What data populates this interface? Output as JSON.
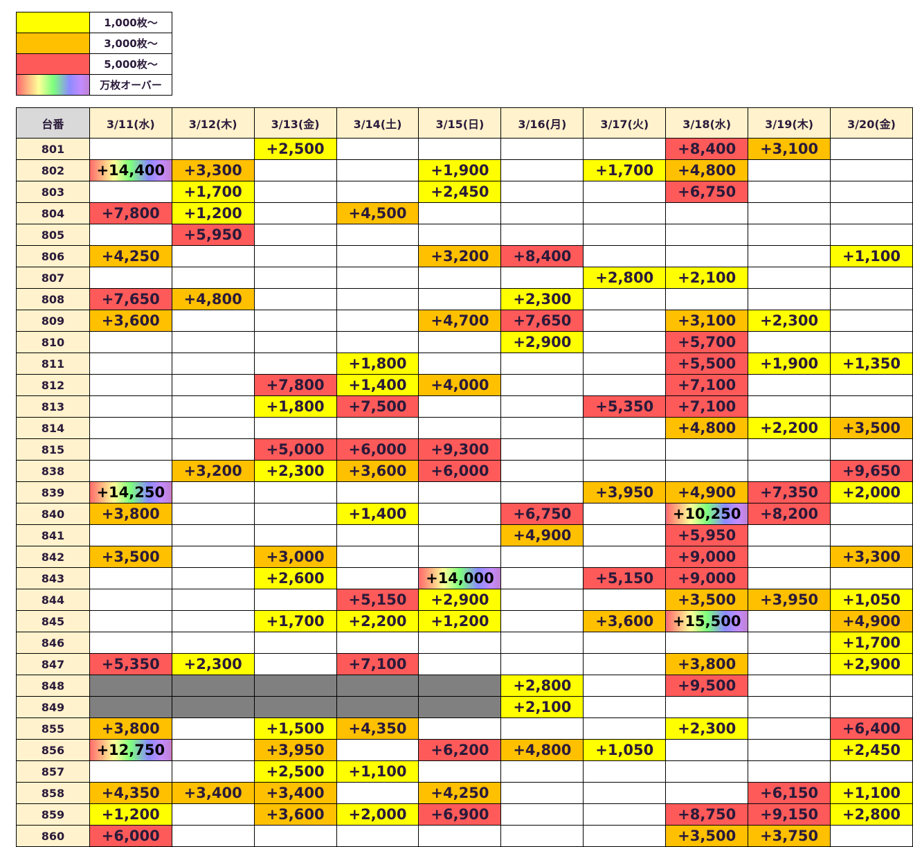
{
  "legend": [
    {
      "label": "1,000枚～",
      "color": "#ffff00"
    },
    {
      "label": "3,000枚～",
      "color": "#ffc000"
    },
    {
      "label": "5,000枚～",
      "color": "#ff5a5a"
    },
    {
      "label": "万枚オーバー",
      "color": "rainbow"
    }
  ],
  "header": {
    "id_label": "台番",
    "dates": [
      "3/11(水)",
      "3/12(木)",
      "3/13(金)",
      "3/14(土)",
      "3/15(日)",
      "3/16(月)",
      "3/17(火)",
      "3/18(水)",
      "3/19(木)",
      "3/20(金)"
    ]
  },
  "rows": [
    {
      "id": "801",
      "cells": [
        "",
        "",
        "+2,500",
        "",
        "",
        "",
        "",
        "+8,400",
        "+3,100",
        ""
      ]
    },
    {
      "id": "802",
      "cells": [
        "+14,400",
        "+3,300",
        "",
        "",
        "+1,900",
        "",
        "+1,700",
        "+4,800",
        "",
        ""
      ]
    },
    {
      "id": "803",
      "cells": [
        "",
        "+1,700",
        "",
        "",
        "+2,450",
        "",
        "",
        "+6,750",
        "",
        ""
      ]
    },
    {
      "id": "804",
      "cells": [
        "+7,800",
        "+1,200",
        "",
        "+4,500",
        "",
        "",
        "",
        "",
        "",
        ""
      ]
    },
    {
      "id": "805",
      "cells": [
        "",
        "+5,950",
        "",
        "",
        "",
        "",
        "",
        "",
        "",
        ""
      ]
    },
    {
      "id": "806",
      "cells": [
        "+4,250",
        "",
        "",
        "",
        "+3,200",
        "+8,400",
        "",
        "",
        "",
        "+1,100"
      ]
    },
    {
      "id": "807",
      "cells": [
        "",
        "",
        "",
        "",
        "",
        "",
        "+2,800",
        "+2,100",
        "",
        ""
      ]
    },
    {
      "id": "808",
      "cells": [
        "+7,650",
        "+4,800",
        "",
        "",
        "",
        "+2,300",
        "",
        "",
        "",
        ""
      ]
    },
    {
      "id": "809",
      "cells": [
        "+3,600",
        "",
        "",
        "",
        "+4,700",
        "+7,650",
        "",
        "+3,100",
        "+2,300",
        ""
      ]
    },
    {
      "id": "810",
      "cells": [
        "",
        "",
        "",
        "",
        "",
        "+2,900",
        "",
        "+5,700",
        "",
        ""
      ]
    },
    {
      "id": "811",
      "cells": [
        "",
        "",
        "",
        "+1,800",
        "",
        "",
        "",
        "+5,500",
        "+1,900",
        "+1,350"
      ]
    },
    {
      "id": "812",
      "cells": [
        "",
        "",
        "+7,800",
        "+1,400",
        "+4,000",
        "",
        "",
        "+7,100",
        "",
        ""
      ]
    },
    {
      "id": "813",
      "cells": [
        "",
        "",
        "+1,800",
        "+7,500",
        "",
        "",
        "+5,350",
        "+7,100",
        "",
        ""
      ]
    },
    {
      "id": "814",
      "cells": [
        "",
        "",
        "",
        "",
        "",
        "",
        "",
        "+4,800",
        "+2,200",
        "+3,500"
      ]
    },
    {
      "id": "815",
      "cells": [
        "",
        "",
        "+5,000",
        "+6,000",
        "+9,300",
        "",
        "",
        "",
        "",
        ""
      ]
    },
    {
      "id": "838",
      "cells": [
        "",
        "+3,200",
        "+2,300",
        "+3,600",
        "+6,000",
        "",
        "",
        "",
        "",
        "+9,650"
      ]
    },
    {
      "id": "839",
      "cells": [
        "+14,250",
        "",
        "",
        "",
        "",
        "",
        "+3,950",
        "+4,900",
        "+7,350",
        "+2,000"
      ]
    },
    {
      "id": "840",
      "cells": [
        "+3,800",
        "",
        "",
        "+1,400",
        "",
        "+6,750",
        "",
        "+10,250",
        "+8,200",
        ""
      ]
    },
    {
      "id": "841",
      "cells": [
        "",
        "",
        "",
        "",
        "",
        "+4,900",
        "",
        "+5,950",
        "",
        ""
      ]
    },
    {
      "id": "842",
      "cells": [
        "+3,500",
        "",
        "+3,000",
        "",
        "",
        "",
        "",
        "+9,000",
        "",
        "+3,300"
      ]
    },
    {
      "id": "843",
      "cells": [
        "",
        "",
        "+2,600",
        "",
        "+14,000",
        "",
        "+5,150",
        "+9,000",
        "",
        ""
      ]
    },
    {
      "id": "844",
      "cells": [
        "",
        "",
        "",
        "+5,150",
        "+2,900",
        "",
        "",
        "+3,500",
        "+3,950",
        "+1,050"
      ]
    },
    {
      "id": "845",
      "cells": [
        "",
        "",
        "+1,700",
        "+2,200",
        "+1,200",
        "",
        "+3,600",
        "+15,500",
        "",
        "+4,900"
      ]
    },
    {
      "id": "846",
      "cells": [
        "",
        "",
        "",
        "",
        "",
        "",
        "",
        "",
        "",
        "+1,700"
      ]
    },
    {
      "id": "847",
      "cells": [
        "+5,350",
        "+2,300",
        "",
        "+7,100",
        "",
        "",
        "",
        "+3,800",
        "",
        "+2,900"
      ]
    },
    {
      "id": "848",
      "cells": [
        null,
        null,
        null,
        null,
        null,
        "+2,800",
        "",
        "+9,500",
        "",
        ""
      ]
    },
    {
      "id": "849",
      "cells": [
        null,
        null,
        null,
        null,
        null,
        "+2,100",
        "",
        "",
        "",
        ""
      ]
    },
    {
      "id": "855",
      "cells": [
        "+3,800",
        "",
        "+1,500",
        "+4,350",
        "",
        "",
        "",
        "+2,300",
        "",
        "+6,400"
      ]
    },
    {
      "id": "856",
      "cells": [
        "+12,750",
        "",
        "+3,950",
        "",
        "+6,200",
        "+4,800",
        "+1,050",
        "",
        "",
        "+2,450"
      ]
    },
    {
      "id": "857",
      "cells": [
        "",
        "",
        "+2,500",
        "+1,100",
        "",
        "",
        "",
        "",
        "",
        ""
      ]
    },
    {
      "id": "858",
      "cells": [
        "+4,350",
        "+3,400",
        "+3,400",
        "",
        "+4,250",
        "",
        "",
        "",
        "+6,150",
        "+1,100"
      ]
    },
    {
      "id": "859",
      "cells": [
        "+1,200",
        "",
        "+3,600",
        "+2,000",
        "+6,900",
        "",
        "",
        "+8,750",
        "+9,150",
        "+2,800"
      ]
    },
    {
      "id": "860",
      "cells": [
        "+6,000",
        "",
        "",
        "",
        "",
        "",
        "",
        "+3,500",
        "+3,750",
        ""
      ]
    }
  ]
}
